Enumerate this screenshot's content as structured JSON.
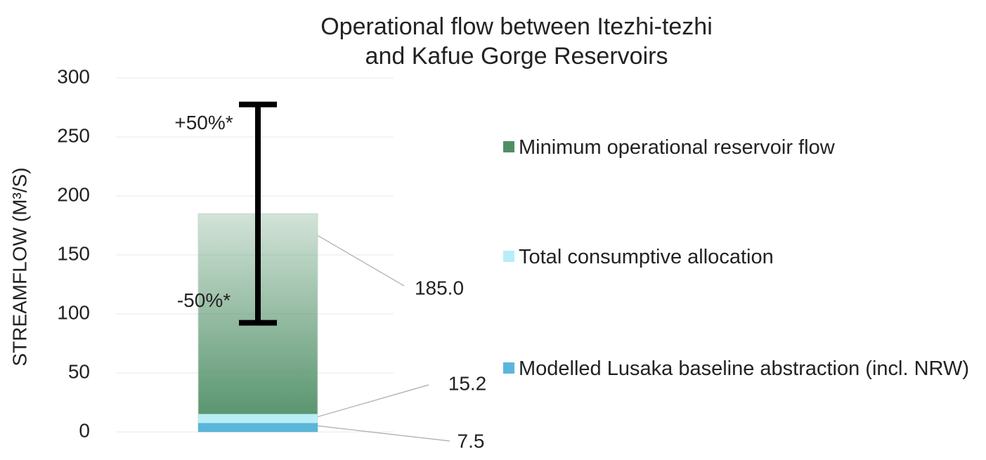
{
  "chart_data": {
    "type": "overlap-bar",
    "title": [
      "Operational flow between Itezhi-tezhi",
      "and Kafue Gorge Reservoirs"
    ],
    "y_label": "STREAMFLOW (M³/S)",
    "categories": [
      null
    ],
    "series": [
      {
        "name": "Minimum operational reservoir flow",
        "color": "#4f8f66",
        "values": [
          185
        ],
        "value_labels": [
          "185.0"
        ],
        "error": [
          92.5
        ]
      },
      {
        "name": "Total consumptive allocation",
        "color": "#b8eef6",
        "values": [
          15.2
        ]
      },
      {
        "name": "Modelled Lusaka baseline abstraction (incl. NRW)",
        "color": "#5cb6da",
        "values": [
          7.5
        ]
      }
    ],
    "annotations": [
      "+50%*",
      "-50%*"
    ],
    "ylim": [
      0,
      300
    ],
    "yticks": [
      0,
      50,
      100,
      150,
      200,
      250,
      300
    ],
    "grid": true
  }
}
